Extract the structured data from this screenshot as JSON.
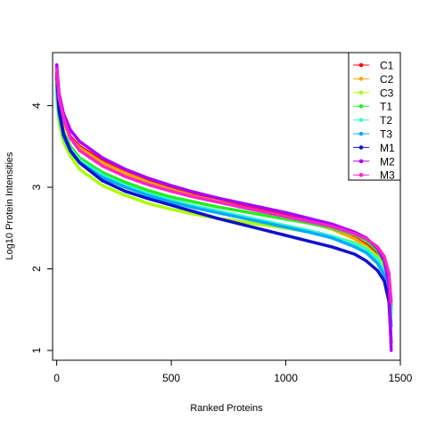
{
  "chart_data": {
    "type": "line",
    "title": "",
    "xlabel": "Ranked Proteins",
    "ylabel": "Log10 Protein Intensities",
    "xlim": [
      -18,
      1500
    ],
    "ylim": [
      0.88,
      4.65
    ],
    "x_ticks": [
      0,
      500,
      1000,
      1500
    ],
    "y_ticks": [
      1,
      2,
      3,
      4
    ],
    "grid": false,
    "legend_position": "top-right",
    "series": [
      {
        "name": "C1",
        "color": "#ff0000",
        "x": [
          0,
          10,
          30,
          60,
          100,
          200,
          300,
          400,
          500,
          600,
          700,
          800,
          900,
          1000,
          1100,
          1200,
          1300,
          1350,
          1400,
          1430,
          1450,
          1460
        ],
        "y": [
          4.35,
          4.05,
          3.82,
          3.62,
          3.5,
          3.32,
          3.18,
          3.07,
          2.98,
          2.9,
          2.84,
          2.77,
          2.71,
          2.65,
          2.58,
          2.5,
          2.38,
          2.3,
          2.18,
          2.05,
          1.85,
          1.55
        ]
      },
      {
        "name": "C2",
        "color": "#ffa500",
        "x": [
          0,
          10,
          30,
          60,
          100,
          200,
          300,
          400,
          500,
          600,
          700,
          800,
          900,
          1000,
          1100,
          1200,
          1300,
          1350,
          1400,
          1430,
          1450,
          1460
        ],
        "y": [
          4.3,
          4.02,
          3.8,
          3.6,
          3.48,
          3.3,
          3.17,
          3.06,
          2.97,
          2.89,
          2.83,
          2.76,
          2.7,
          2.64,
          2.57,
          2.49,
          2.37,
          2.28,
          2.15,
          2.02,
          1.8,
          1.5
        ]
      },
      {
        "name": "C3",
        "color": "#aaff00",
        "x": [
          0,
          10,
          30,
          60,
          100,
          200,
          300,
          400,
          500,
          600,
          700,
          800,
          900,
          1000,
          1100,
          1200,
          1300,
          1350,
          1400,
          1430,
          1450,
          1460
        ],
        "y": [
          4.1,
          3.8,
          3.55,
          3.38,
          3.22,
          3.02,
          2.9,
          2.8,
          2.73,
          2.67,
          2.62,
          2.58,
          2.54,
          2.5,
          2.45,
          2.4,
          2.32,
          2.26,
          2.15,
          2.02,
          1.8,
          1.5
        ]
      },
      {
        "name": "T1",
        "color": "#22ee22",
        "x": [
          0,
          10,
          30,
          60,
          100,
          200,
          300,
          400,
          500,
          600,
          700,
          800,
          900,
          1000,
          1100,
          1200,
          1300,
          1350,
          1400,
          1430,
          1450,
          1460
        ],
        "y": [
          4.2,
          3.92,
          3.68,
          3.5,
          3.36,
          3.18,
          3.06,
          2.96,
          2.88,
          2.82,
          2.76,
          2.71,
          2.66,
          2.61,
          2.56,
          2.5,
          2.42,
          2.35,
          2.22,
          2.08,
          1.85,
          1.5
        ]
      },
      {
        "name": "T2",
        "color": "#33ffcc",
        "x": [
          0,
          10,
          30,
          60,
          100,
          200,
          300,
          400,
          500,
          600,
          700,
          800,
          900,
          1000,
          1100,
          1200,
          1300,
          1350,
          1400,
          1430,
          1450,
          1460
        ],
        "y": [
          4.15,
          3.88,
          3.65,
          3.47,
          3.33,
          3.15,
          3.02,
          2.92,
          2.84,
          2.77,
          2.71,
          2.65,
          2.59,
          2.53,
          2.47,
          2.4,
          2.31,
          2.24,
          2.12,
          1.98,
          1.75,
          1.45
        ]
      },
      {
        "name": "T3",
        "color": "#00aaff",
        "x": [
          0,
          10,
          30,
          60,
          100,
          200,
          300,
          400,
          500,
          600,
          700,
          800,
          900,
          1000,
          1100,
          1200,
          1300,
          1350,
          1400,
          1430,
          1450,
          1460
        ],
        "y": [
          4.25,
          3.9,
          3.62,
          3.44,
          3.3,
          3.12,
          3.0,
          2.9,
          2.82,
          2.75,
          2.69,
          2.63,
          2.57,
          2.51,
          2.45,
          2.38,
          2.27,
          2.2,
          2.07,
          1.92,
          1.7,
          1.3
        ]
      },
      {
        "name": "M1",
        "color": "#1010cc",
        "x": [
          0,
          10,
          30,
          60,
          100,
          200,
          300,
          400,
          500,
          600,
          700,
          800,
          900,
          1000,
          1100,
          1200,
          1300,
          1350,
          1400,
          1430,
          1450,
          1460
        ],
        "y": [
          4.4,
          3.95,
          3.65,
          3.45,
          3.3,
          3.08,
          2.95,
          2.86,
          2.78,
          2.7,
          2.62,
          2.55,
          2.48,
          2.41,
          2.34,
          2.27,
          2.18,
          2.1,
          1.98,
          1.85,
          1.6,
          1.1
        ]
      },
      {
        "name": "M2",
        "color": "#aa00ff",
        "x": [
          0,
          10,
          30,
          60,
          100,
          200,
          300,
          400,
          500,
          600,
          700,
          800,
          900,
          1000,
          1100,
          1200,
          1300,
          1350,
          1400,
          1430,
          1450,
          1460
        ],
        "y": [
          4.5,
          4.15,
          3.9,
          3.7,
          3.56,
          3.36,
          3.22,
          3.11,
          3.02,
          2.94,
          2.87,
          2.81,
          2.75,
          2.69,
          2.62,
          2.55,
          2.45,
          2.38,
          2.25,
          2.1,
          1.82,
          1.0
        ]
      },
      {
        "name": "M3",
        "color": "#ff22cc",
        "x": [
          0,
          10,
          30,
          60,
          100,
          200,
          300,
          400,
          500,
          600,
          700,
          800,
          900,
          1000,
          1100,
          1200,
          1300,
          1350,
          1400,
          1430,
          1450,
          1460
        ],
        "y": [
          4.45,
          4.1,
          3.85,
          3.6,
          3.45,
          3.26,
          3.13,
          3.03,
          2.95,
          2.88,
          2.82,
          2.76,
          2.7,
          2.64,
          2.58,
          2.52,
          2.43,
          2.37,
          2.27,
          2.15,
          1.95,
          1.6
        ]
      }
    ]
  }
}
